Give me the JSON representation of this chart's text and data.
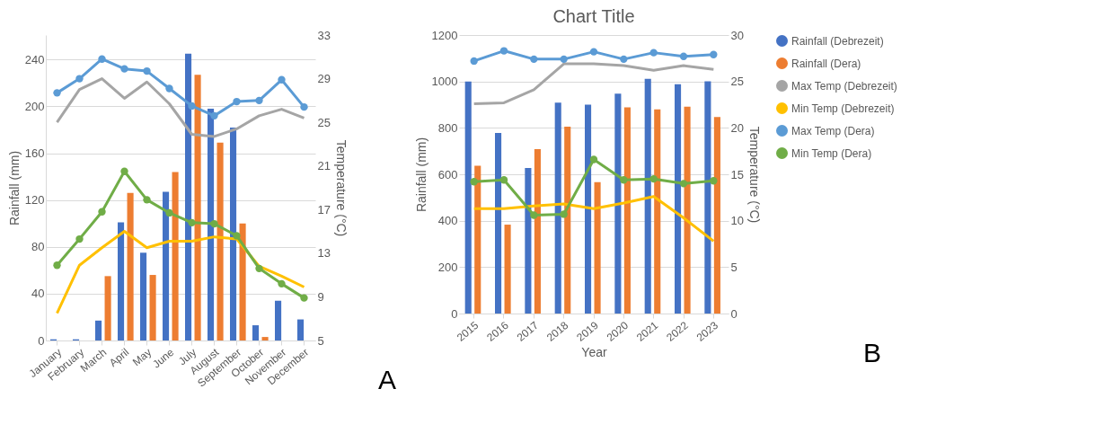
{
  "chart_data": [
    {
      "type": "bar",
      "categories": [
        "January",
        "February",
        "March",
        "April",
        "May",
        "June",
        "July",
        "August",
        "September",
        "October",
        "November",
        "December"
      ],
      "ylabel": "Rainfall (mm)",
      "y2label": "Temperature (°C)",
      "ylim": [
        0,
        261
      ],
      "yticks": [
        0,
        40,
        80,
        120,
        160,
        200,
        240
      ],
      "y2lim": [
        5,
        33
      ],
      "y2ticks": [
        5,
        9,
        13,
        17,
        21,
        25,
        29,
        33
      ],
      "grid": "y",
      "annotations": [
        "A"
      ],
      "series": [
        {
          "color": "#4472c4",
          "values": [
            1,
            1,
            17,
            101,
            75,
            127,
            245,
            198,
            182,
            13,
            34,
            18
          ]
        },
        {
          "color": "#ed7d31",
          "values": [
            0,
            0,
            55,
            126,
            56,
            144,
            227,
            169,
            100,
            3,
            0,
            0
          ]
        },
        {
          "type": "line",
          "axis": "y2",
          "color": "#a5a5a5",
          "marker": "none",
          "values": [
            25.0,
            28.0,
            29.0,
            27.2,
            28.7,
            26.7,
            23.9,
            23.7,
            24.4,
            25.6,
            26.2,
            25.4
          ]
        },
        {
          "type": "line",
          "axis": "y2",
          "color": "#ffc000",
          "marker": "none",
          "values": [
            7.5,
            11.9,
            13.5,
            15.0,
            13.5,
            14.1,
            14.1,
            14.5,
            14.3,
            11.8,
            10.9,
            9.9
          ]
        },
        {
          "type": "line",
          "axis": "y2",
          "color": "#5b9bd5",
          "marker": "circle",
          "values": [
            27.7,
            29.0,
            30.8,
            29.9,
            29.7,
            28.1,
            26.5,
            25.6,
            26.9,
            27.0,
            28.9,
            26.4
          ]
        },
        {
          "type": "line",
          "axis": "y2",
          "color": "#70ad47",
          "marker": "circle",
          "values": [
            11.9,
            14.3,
            16.8,
            20.5,
            17.9,
            16.7,
            15.8,
            15.7,
            14.6,
            11.6,
            10.2,
            8.9
          ]
        }
      ]
    },
    {
      "type": "bar",
      "title": "Chart Title",
      "categories": [
        "2015",
        "2016",
        "2017",
        "2018",
        "2019",
        "2020",
        "2021",
        "2022",
        "2023"
      ],
      "xlabel": "Year",
      "ylabel": "Rainfall (mm)",
      "y2label": "Temperature (°C)",
      "ylim": [
        0,
        1200
      ],
      "yticks": [
        0,
        200,
        400,
        600,
        800,
        1000,
        1200
      ],
      "y2lim": [
        0,
        30
      ],
      "y2ticks": [
        0,
        5,
        10,
        15,
        20,
        25,
        30
      ],
      "grid": "y",
      "legend": "right",
      "annotations": [
        "B"
      ],
      "series": [
        {
          "name": "Rainfall (Debrezeit)",
          "color": "#4472c4",
          "values": [
            1000,
            778,
            627,
            909,
            900,
            947,
            1011,
            988,
            1001
          ]
        },
        {
          "name": "Rainfall (Dera)",
          "color": "#ed7d31",
          "values": [
            637,
            383,
            708,
            805,
            566,
            888,
            880,
            891,
            847
          ]
        },
        {
          "name": "Max Temp (Debrezeit)",
          "type": "line",
          "axis": "y2",
          "color": "#a5a5a5",
          "marker": "none",
          "values": [
            22.6,
            22.7,
            24.1,
            26.9,
            26.9,
            26.7,
            26.2,
            26.7,
            26.3
          ]
        },
        {
          "name": "Min Temp (Debrezeit)",
          "type": "line",
          "axis": "y2",
          "color": "#ffc000",
          "marker": "none",
          "values": [
            11.3,
            11.3,
            11.6,
            11.8,
            11.3,
            11.9,
            12.6,
            10.3,
            7.8
          ]
        },
        {
          "name": "Max Temp (Dera)",
          "type": "line",
          "axis": "y2",
          "color": "#5b9bd5",
          "marker": "circle",
          "values": [
            27.2,
            28.3,
            27.4,
            27.4,
            28.2,
            27.4,
            28.1,
            27.7,
            27.9
          ]
        },
        {
          "name": "Min Temp (Dera)",
          "type": "line",
          "axis": "y2",
          "color": "#70ad47",
          "marker": "circle",
          "values": [
            14.2,
            14.4,
            10.6,
            10.7,
            16.6,
            14.4,
            14.5,
            14.0,
            14.3
          ]
        }
      ]
    }
  ]
}
